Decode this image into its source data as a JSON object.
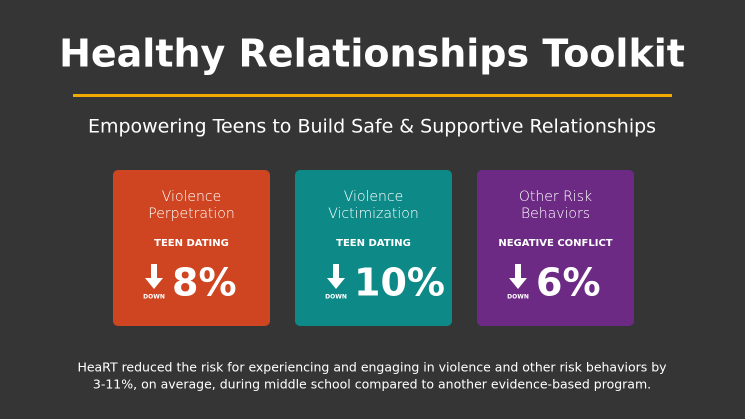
{
  "header": {
    "title": "Healthy Relationships Toolkit",
    "subtitle": "Empowering Teens to Build Safe & Supportive Relationships"
  },
  "cards": [
    {
      "title": [
        "Violence",
        "Perpetration"
      ],
      "label": "TEEN DATING",
      "direction": "DOWN",
      "value": "8%",
      "color": "#cf4521"
    },
    {
      "title": [
        "Violence",
        "Victimization"
      ],
      "label": "TEEN DATING",
      "direction": "DOWN",
      "value": "10%",
      "color": "#0d8a88"
    },
    {
      "title": [
        "Other Risk",
        "Behaviors"
      ],
      "label": "NEGATIVE CONFLICT",
      "direction": "DOWN",
      "value": "6%",
      "color": "#6c2a84"
    }
  ],
  "footer": [
    "HeaRT reduced the risk for experiencing and engaging in violence and other risk behaviors by",
    "3-11%, on average, during middle school compared to another evidence-based program."
  ]
}
